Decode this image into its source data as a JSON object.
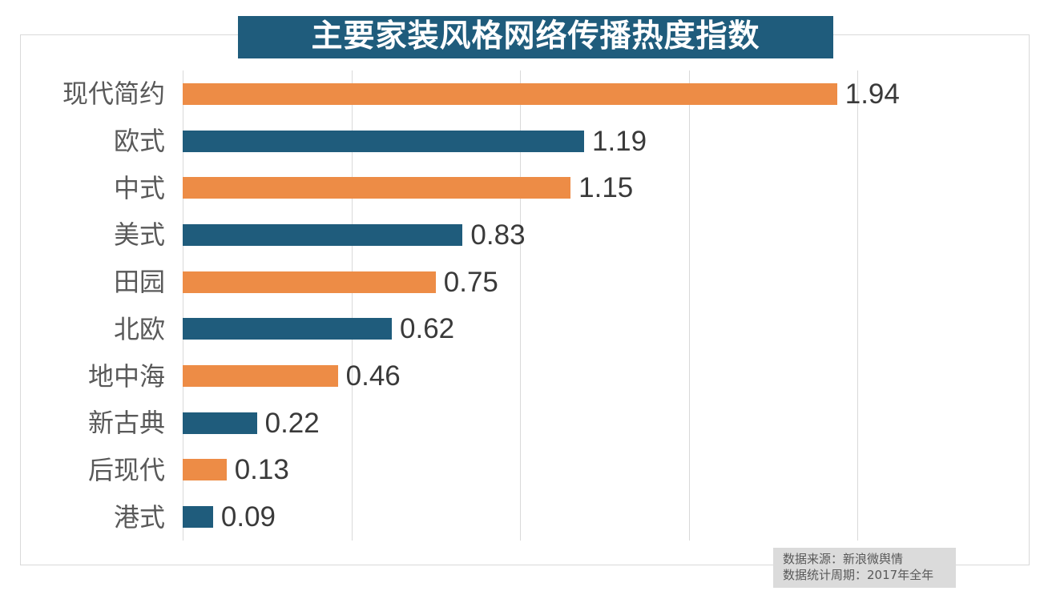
{
  "chart": {
    "title": "主要家装风格网络传播热度指数"
  },
  "footer": {
    "source": "数据来源：新浪微舆情",
    "period": "数据统计周期：2017年全年"
  },
  "chart_data": {
    "type": "bar",
    "orientation": "horizontal",
    "title": "主要家装风格网络传播热度指数",
    "categories": [
      "现代简约",
      "欧式",
      "中式",
      "美式",
      "田园",
      "北欧",
      "地中海",
      "新古典",
      "后现代",
      "港式"
    ],
    "values": [
      1.94,
      1.19,
      1.15,
      0.83,
      0.75,
      0.62,
      0.46,
      0.22,
      0.13,
      0.09
    ],
    "value_labels": [
      "1.94",
      "1.19",
      "1.15",
      "0.83",
      "0.75",
      "0.62",
      "0.46",
      "0.22",
      "0.13",
      "0.09"
    ],
    "xlabel": "",
    "ylabel": "",
    "xlim": [
      0,
      2.0
    ],
    "gridline_interval": 0.5,
    "grid": "vertical-only",
    "legend": "none",
    "data_labels": "outside-end",
    "colors": {
      "bar_orange": "#ED8C46",
      "bar_teal": "#1F5C7C",
      "title_banner_bg": "#1F5C7C",
      "title_text": "#FFFFFF",
      "category_label": "#595959",
      "value_label": "#3A3A3A",
      "gridline": "#D9D9D9",
      "frame_border": "#D9D9D9",
      "source_box_bg": "#DBDBDB",
      "source_text": "#595959"
    }
  }
}
